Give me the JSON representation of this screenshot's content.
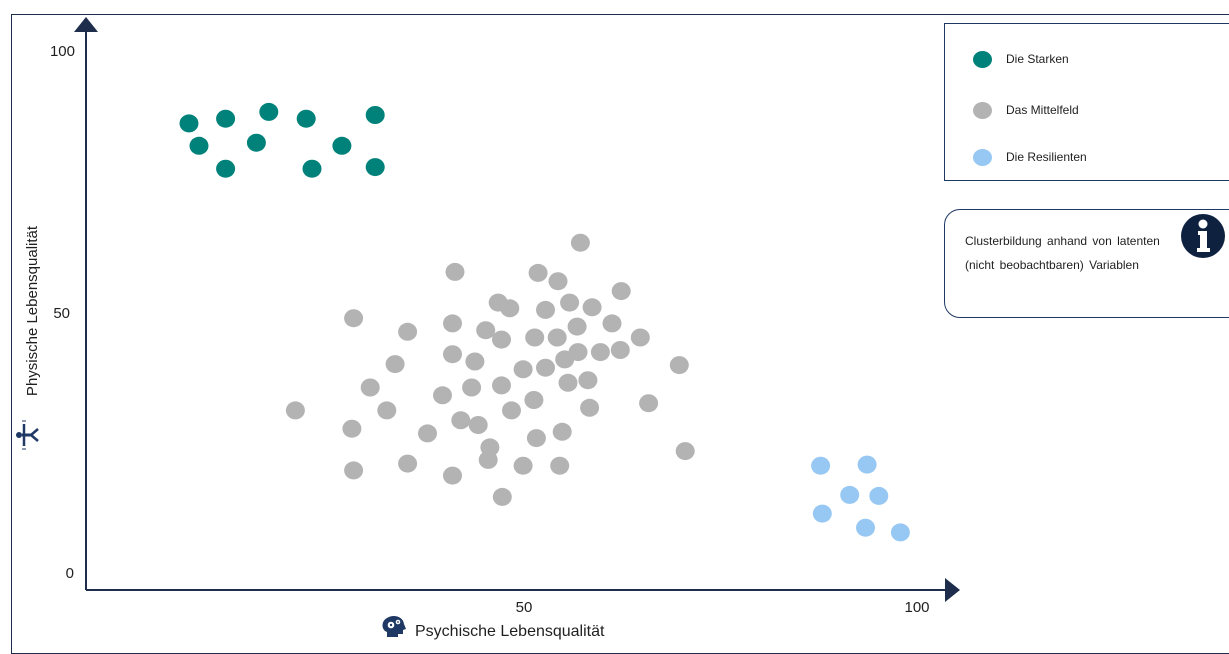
{
  "chart_data": {
    "type": "scatter",
    "xlabel": "Psychische Lebensqualität",
    "ylabel": "Physische Lebensqualität",
    "xlim": [
      0,
      100
    ],
    "ylim": [
      0,
      100
    ],
    "x_ticks": [
      "50",
      "100"
    ],
    "y_ticks": [
      "0",
      "50",
      "100"
    ],
    "grid": false,
    "legend_position": "top-right",
    "series": [
      {
        "name": "Die Starken",
        "color": "#00827a",
        "points": [
          [
            12.4,
            86.3
          ],
          [
            13.6,
            82.0
          ],
          [
            16.8,
            87.2
          ],
          [
            16.8,
            77.6
          ],
          [
            20.5,
            82.6
          ],
          [
            22.0,
            88.5
          ],
          [
            26.5,
            87.2
          ],
          [
            27.2,
            77.6
          ],
          [
            30.8,
            82.0
          ],
          [
            34.8,
            87.9
          ],
          [
            34.8,
            77.9
          ]
        ]
      },
      {
        "name": "Das Mittelfeld",
        "color": "#b3b3b3",
        "points": [
          [
            25.2,
            31.2
          ],
          [
            32.2,
            48.9
          ],
          [
            32.0,
            27.7
          ],
          [
            32.2,
            19.7
          ],
          [
            34.2,
            35.6
          ],
          [
            36.2,
            31.2
          ],
          [
            37.2,
            40.1
          ],
          [
            38.7,
            46.3
          ],
          [
            38.7,
            21.0
          ],
          [
            41.1,
            26.8
          ],
          [
            42.9,
            34.1
          ],
          [
            44.1,
            47.9
          ],
          [
            44.1,
            42.0
          ],
          [
            44.1,
            18.7
          ],
          [
            44.4,
            57.8
          ],
          [
            45.1,
            29.3
          ],
          [
            46.4,
            35.6
          ],
          [
            46.8,
            40.6
          ],
          [
            47.2,
            28.4
          ],
          [
            48.1,
            46.6
          ],
          [
            48.6,
            24.1
          ],
          [
            48.4,
            21.7
          ],
          [
            49.6,
            51.9
          ],
          [
            50.0,
            36.0
          ],
          [
            50.0,
            44.8
          ],
          [
            50.1,
            14.6
          ],
          [
            51.2,
            31.2
          ],
          [
            51.0,
            50.8
          ],
          [
            52.6,
            39.1
          ],
          [
            52.6,
            20.6
          ],
          [
            53.9,
            33.2
          ],
          [
            54.0,
            45.2
          ],
          [
            54.2,
            25.9
          ],
          [
            54.4,
            57.6
          ],
          [
            55.3,
            50.5
          ],
          [
            55.3,
            39.4
          ],
          [
            56.8,
            56.0
          ],
          [
            56.7,
            45.2
          ],
          [
            57.0,
            20.6
          ],
          [
            57.3,
            27.1
          ],
          [
            57.6,
            41.0
          ],
          [
            58.0,
            36.5
          ],
          [
            58.2,
            51.9
          ],
          [
            59.1,
            47.3
          ],
          [
            59.2,
            42.4
          ],
          [
            59.5,
            63.4
          ],
          [
            60.4,
            37.0
          ],
          [
            60.6,
            31.7
          ],
          [
            60.9,
            51.0
          ],
          [
            61.9,
            42.4
          ],
          [
            63.3,
            47.9
          ],
          [
            64.3,
            42.8
          ],
          [
            64.4,
            54.1
          ],
          [
            66.7,
            45.2
          ],
          [
            67.7,
            32.6
          ],
          [
            71.4,
            39.9
          ],
          [
            72.1,
            23.4
          ]
        ]
      },
      {
        "name": "Die Resilienten",
        "color": "#97c8f4",
        "points": [
          [
            88.4,
            20.6
          ],
          [
            88.6,
            11.4
          ],
          [
            91.9,
            15.0
          ],
          [
            94.0,
            20.8
          ],
          [
            93.8,
            8.7
          ],
          [
            95.4,
            14.8
          ],
          [
            98.0,
            7.8
          ]
        ]
      }
    ]
  },
  "info": {
    "text": "Clusterbildung anhand von latenten (nicht beobachtbaren) Variablen",
    "icon": "info-icon"
  },
  "icons": {
    "y_axis": "physical-activity-icon",
    "x_axis": "mental-health-head-icon"
  }
}
